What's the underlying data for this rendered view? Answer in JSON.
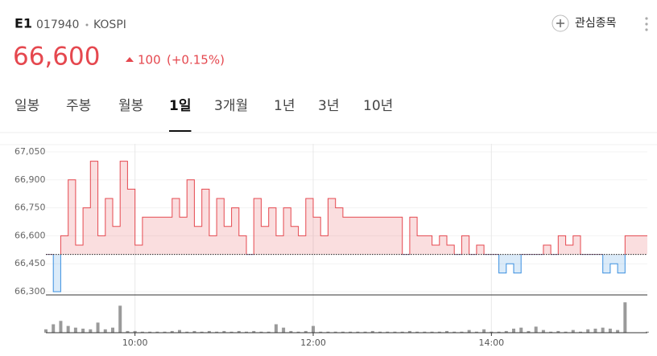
{
  "header": {
    "name": "E1",
    "code": "017940",
    "market": "KOSPI",
    "price": "66,600",
    "change": "100",
    "change_pct": "(+0.15%)",
    "watch": "관심종목"
  },
  "tabs": {
    "items": [
      "일봉",
      "주봉",
      "월봉",
      "1일",
      "3개월",
      "1년",
      "3년",
      "10년"
    ],
    "active": 3
  },
  "chart_data": {
    "type": "line",
    "base": 66500,
    "color": "#e5484f",
    "down_color": "#3a8fe0",
    "volume_color": "#9a9a9a",
    "x": [
      "09:00",
      "09:05",
      "09:10",
      "09:15",
      "09:20",
      "09:25",
      "09:30",
      "09:35",
      "09:40",
      "09:45",
      "09:50",
      "09:55",
      "10:00",
      "10:05",
      "10:10",
      "10:15",
      "10:20",
      "10:25",
      "10:30",
      "10:35",
      "10:40",
      "10:45",
      "10:50",
      "10:55",
      "11:00",
      "11:05",
      "11:10",
      "11:15",
      "11:20",
      "11:25",
      "11:30",
      "11:35",
      "11:40",
      "11:45",
      "11:50",
      "11:55",
      "12:00",
      "12:05",
      "12:10",
      "12:15",
      "12:20",
      "12:25",
      "12:30",
      "12:35",
      "12:40",
      "12:45",
      "12:50",
      "12:55",
      "13:00",
      "13:05",
      "13:10",
      "13:15",
      "13:20",
      "13:25",
      "13:30",
      "13:35",
      "13:40",
      "13:45",
      "13:50",
      "13:55",
      "14:00",
      "14:05",
      "14:10",
      "14:15",
      "14:20",
      "14:25",
      "14:30",
      "14:35",
      "14:40",
      "14:45",
      "14:50",
      "14:55",
      "15:00",
      "15:05",
      "15:10",
      "15:15",
      "15:20",
      "15:25",
      "15:30",
      "15:45"
    ],
    "values": [
      66500,
      66300,
      66600,
      66900,
      66550,
      66750,
      67000,
      66600,
      66800,
      66650,
      67000,
      66850,
      66550,
      66700,
      66700,
      66700,
      66700,
      66800,
      66700,
      66900,
      66650,
      66850,
      66600,
      66800,
      66650,
      66750,
      66600,
      66500,
      66800,
      66650,
      66750,
      66600,
      66750,
      66650,
      66600,
      66800,
      66700,
      66600,
      66800,
      66750,
      66700,
      66700,
      66700,
      66700,
      66700,
      66700,
      66700,
      66700,
      66500,
      66700,
      66600,
      66600,
      66550,
      66600,
      66550,
      66500,
      66600,
      66500,
      66550,
      66500,
      66500,
      66400,
      66450,
      66400,
      66500,
      66500,
      66500,
      66550,
      66500,
      66600,
      66550,
      66600,
      66500,
      66500,
      66500,
      66400,
      66450,
      66400,
      66600,
      66600
    ],
    "volume": [
      10,
      25,
      35,
      20,
      15,
      12,
      10,
      30,
      10,
      15,
      80,
      5,
      5,
      3,
      3,
      3,
      3,
      5,
      8,
      3,
      5,
      3,
      5,
      3,
      5,
      3,
      5,
      3,
      5,
      3,
      3,
      25,
      15,
      5,
      3,
      5,
      20,
      3,
      3,
      3,
      3,
      3,
      3,
      3,
      5,
      3,
      3,
      3,
      3,
      5,
      3,
      3,
      3,
      3,
      5,
      3,
      3,
      8,
      3,
      10,
      3,
      3,
      5,
      12,
      15,
      5,
      18,
      8,
      3,
      5,
      3,
      8,
      3,
      10,
      12,
      15,
      12,
      8,
      90,
      3
    ],
    "volume_ylim": [
      0,
      100
    ],
    "xlim": [
      "09:00",
      "15:45"
    ],
    "xticks": [
      "10:00",
      "12:00",
      "14:00"
    ],
    "ylim": [
      66300,
      67050
    ],
    "yticks": [
      {
        "value": 66300,
        "label": "66,300"
      },
      {
        "value": 66450,
        "label": "66,450"
      },
      {
        "value": 66600,
        "label": "66,600"
      },
      {
        "value": 66750,
        "label": "66,750"
      },
      {
        "value": 66900,
        "label": "66,900"
      },
      {
        "value": 67050,
        "label": "67,050"
      }
    ],
    "grid": true
  }
}
